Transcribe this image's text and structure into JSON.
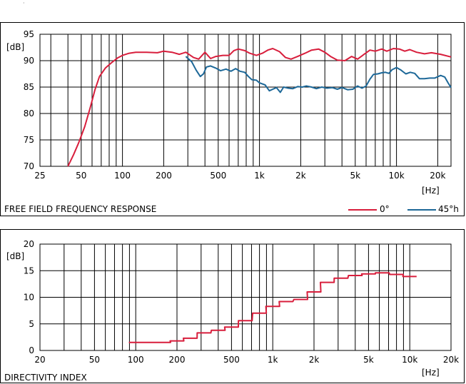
{
  "chart_data": [
    {
      "type": "line",
      "title": "FREE FIELD FREQUENCY RESPONSE",
      "ylabel": "[dB]",
      "xlabel": "[Hz]",
      "xscale": "log",
      "xlim": [
        25,
        25000
      ],
      "ylim": [
        70,
        95
      ],
      "yticks": [
        70,
        75,
        80,
        85,
        90,
        95
      ],
      "xticks": [
        {
          "v": 25,
          "label": "25"
        },
        {
          "v": 50,
          "label": "50"
        },
        {
          "v": 100,
          "label": "100"
        },
        {
          "v": 200,
          "label": "200"
        },
        {
          "v": 500,
          "label": "500"
        },
        {
          "v": 1000,
          "label": "1k"
        },
        {
          "v": 2000,
          "label": "2k"
        },
        {
          "v": 5000,
          "label": "5k"
        },
        {
          "v": 10000,
          "label": "10k"
        },
        {
          "v": 20000,
          "label": "20k"
        }
      ],
      "grid": true,
      "legend_position": "bottom-right",
      "series": [
        {
          "name": "0°",
          "color": "#d81e3c",
          "points": [
            [
              40,
              70
            ],
            [
              44,
              72.2
            ],
            [
              48,
              74.5
            ],
            [
              53,
              77.5
            ],
            [
              58,
              81
            ],
            [
              63,
              84.5
            ],
            [
              68,
              87
            ],
            [
              75,
              88.6
            ],
            [
              83,
              89.6
            ],
            [
              92,
              90.5
            ],
            [
              100,
              91
            ],
            [
              112,
              91.4
            ],
            [
              125,
              91.6
            ],
            [
              150,
              91.6
            ],
            [
              180,
              91.5
            ],
            [
              200,
              91.8
            ],
            [
              230,
              91.6
            ],
            [
              260,
              91.2
            ],
            [
              290,
              91.6
            ],
            [
              330,
              90.6
            ],
            [
              360,
              90.3
            ],
            [
              400,
              91.6
            ],
            [
              440,
              90.4
            ],
            [
              480,
              90.8
            ],
            [
              540,
              91
            ],
            [
              600,
              91
            ],
            [
              650,
              91.9
            ],
            [
              700,
              92.2
            ],
            [
              780,
              91.9
            ],
            [
              850,
              91.4
            ],
            [
              950,
              91
            ],
            [
              1050,
              91.4
            ],
            [
              1150,
              92
            ],
            [
              1250,
              92.3
            ],
            [
              1400,
              91.7
            ],
            [
              1550,
              90.6
            ],
            [
              1700,
              90.3
            ],
            [
              1900,
              90.8
            ],
            [
              2150,
              91.4
            ],
            [
              2400,
              92
            ],
            [
              2700,
              92.2
            ],
            [
              3000,
              91.6
            ],
            [
              3300,
              90.8
            ],
            [
              3700,
              90.1
            ],
            [
              4200,
              90
            ],
            [
              4700,
              90.8
            ],
            [
              5200,
              90.3
            ],
            [
              5800,
              91.2
            ],
            [
              6400,
              92
            ],
            [
              7000,
              91.8
            ],
            [
              7800,
              92.2
            ],
            [
              8500,
              91.8
            ],
            [
              9500,
              92.3
            ],
            [
              10500,
              92.2
            ],
            [
              11500,
              91.8
            ],
            [
              12500,
              92.1
            ],
            [
              14000,
              91.6
            ],
            [
              16000,
              91.3
            ],
            [
              18000,
              91.5
            ],
            [
              21000,
              91.2
            ],
            [
              25000,
              90.7
            ]
          ]
        },
        {
          "name": "45°h",
          "color": "#1d6898",
          "points": [
            [
              290,
              90.8
            ],
            [
              320,
              89.8
            ],
            [
              345,
              88.2
            ],
            [
              370,
              87
            ],
            [
              390,
              87.5
            ],
            [
              410,
              88.8
            ],
            [
              440,
              89
            ],
            [
              480,
              88.6
            ],
            [
              520,
              88.1
            ],
            [
              570,
              88.4
            ],
            [
              620,
              88
            ],
            [
              670,
              88.5
            ],
            [
              720,
              88
            ],
            [
              780,
              87.8
            ],
            [
              830,
              87
            ],
            [
              880,
              86.4
            ],
            [
              950,
              86.3
            ],
            [
              1000,
              85.8
            ],
            [
              1050,
              85.6
            ],
            [
              1100,
              85.4
            ],
            [
              1180,
              84.3
            ],
            [
              1250,
              84.6
            ],
            [
              1330,
              84.9
            ],
            [
              1420,
              84
            ],
            [
              1500,
              85
            ],
            [
              1620,
              84.8
            ],
            [
              1750,
              84.7
            ],
            [
              1900,
              85.1
            ],
            [
              2050,
              85
            ],
            [
              2200,
              85.2
            ],
            [
              2400,
              85
            ],
            [
              2600,
              84.7
            ],
            [
              2850,
              85
            ],
            [
              3100,
              84.8
            ],
            [
              3400,
              84.9
            ],
            [
              3700,
              84.6
            ],
            [
              4000,
              84.9
            ],
            [
              4400,
              84.5
            ],
            [
              4800,
              84.6
            ],
            [
              5200,
              85.2
            ],
            [
              5600,
              84.8
            ],
            [
              6000,
              85.2
            ],
            [
              6400,
              86.5
            ],
            [
              6800,
              87.4
            ],
            [
              7300,
              87.5
            ],
            [
              7800,
              87.7
            ],
            [
              8300,
              87.8
            ],
            [
              8800,
              87.6
            ],
            [
              9300,
              88.3
            ],
            [
              10000,
              88.7
            ],
            [
              10800,
              88.2
            ],
            [
              11700,
              87.5
            ],
            [
              12600,
              87.8
            ],
            [
              13600,
              87.6
            ],
            [
              14700,
              86.6
            ],
            [
              16000,
              86.6
            ],
            [
              17500,
              86.7
            ],
            [
              19000,
              86.7
            ],
            [
              21000,
              87.2
            ],
            [
              22500,
              86.9
            ],
            [
              23800,
              85.8
            ],
            [
              25000,
              84.9
            ]
          ]
        }
      ]
    },
    {
      "type": "line",
      "step": true,
      "title": "DIRECTIVITY INDEX",
      "ylabel": "[dB]",
      "xlabel": "[Hz]",
      "xscale": "log",
      "xlim": [
        20,
        20000
      ],
      "ylim": [
        0,
        20
      ],
      "yticks": [
        0,
        5,
        10,
        15,
        20
      ],
      "xticks": [
        {
          "v": 20,
          "label": "20"
        },
        {
          "v": 50,
          "label": "50"
        },
        {
          "v": 100,
          "label": "100"
        },
        {
          "v": 200,
          "label": "200"
        },
        {
          "v": 500,
          "label": "500"
        },
        {
          "v": 1000,
          "label": "1k"
        },
        {
          "v": 2000,
          "label": "2k"
        },
        {
          "v": 5000,
          "label": "5k"
        },
        {
          "v": 10000,
          "label": "10k"
        },
        {
          "v": 20000,
          "label": "20k"
        }
      ],
      "grid": true,
      "series": [
        {
          "color": "#d81e3c",
          "bands": [
            [
              100,
              1.5
            ],
            [
              125,
              1.5
            ],
            [
              160,
              1.5
            ],
            [
              200,
              1.8
            ],
            [
              250,
              2.3
            ],
            [
              315,
              3.3
            ],
            [
              400,
              3.8
            ],
            [
              500,
              4.4
            ],
            [
              630,
              5.6
            ],
            [
              800,
              7
            ],
            [
              1000,
              8.3
            ],
            [
              1250,
              9.2
            ],
            [
              1600,
              9.6
            ],
            [
              2000,
              11
            ],
            [
              2500,
              12.8
            ],
            [
              3150,
              13.6
            ],
            [
              4000,
              14.1
            ],
            [
              5000,
              14.4
            ],
            [
              6300,
              14.6
            ],
            [
              8000,
              14.3
            ],
            [
              10000,
              13.9
            ]
          ]
        }
      ]
    }
  ]
}
